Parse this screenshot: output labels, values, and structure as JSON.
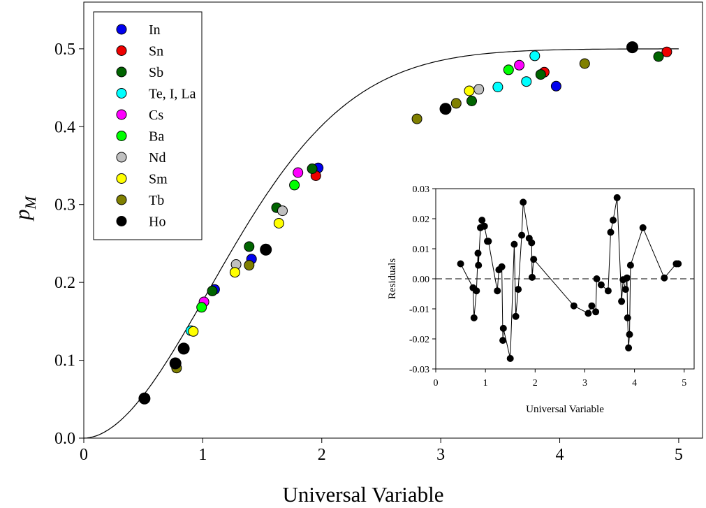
{
  "chart_data": [
    {
      "type": "scatter",
      "xlabel": "Universal Variable",
      "ylabel": "p",
      "ylabel_subscript": "M",
      "xlim": [
        0,
        5.2
      ],
      "ylim": [
        0,
        0.56
      ],
      "xticks": [
        0,
        1,
        2,
        3,
        4,
        5
      ],
      "yticks": [
        0.0,
        0.1,
        0.2,
        0.3,
        0.4,
        0.5
      ],
      "ytick_labels": [
        "0.0",
        "0.1",
        "0.2",
        "0.3",
        "0.4",
        "0.5"
      ],
      "legend_position": "top-left",
      "grid": false,
      "fit_curve": true,
      "series": [
        {
          "name": "In",
          "color": "#0000ee",
          "x": [
            1.1,
            1.41,
            1.97,
            3.97
          ],
          "y": [
            0.191,
            0.23,
            0.347,
            0.452
          ]
        },
        {
          "name": "Sn",
          "color": "#ee0000",
          "x": [
            1.95,
            3.87,
            4.9
          ],
          "y": [
            0.337,
            0.47,
            0.496
          ]
        },
        {
          "name": "Sb",
          "color": "#006400",
          "x": [
            1.08,
            1.39,
            1.62,
            1.92,
            3.26,
            3.84,
            4.83
          ],
          "y": [
            0.189,
            0.246,
            0.296,
            0.346,
            0.433,
            0.467,
            0.49
          ]
        },
        {
          "name": "Te, I, La",
          "color": "#00ffff",
          "x": [
            0.9,
            3.48,
            3.72,
            3.79
          ],
          "y": [
            0.138,
            0.451,
            0.458,
            0.491
          ]
        },
        {
          "name": "Cs",
          "color": "#ff00ff",
          "x": [
            1.01,
            1.8,
            3.66
          ],
          "y": [
            0.175,
            0.341,
            0.479
          ]
        },
        {
          "name": "Ba",
          "color": "#00ff00",
          "x": [
            0.99,
            1.77,
            3.57
          ],
          "y": [
            0.168,
            0.325,
            0.473
          ]
        },
        {
          "name": "Nd",
          "color": "#c0c0c0",
          "x": [
            1.28,
            1.67,
            3.32
          ],
          "y": [
            0.223,
            0.292,
            0.448
          ]
        },
        {
          "name": "Sm",
          "color": "#ffff00",
          "x": [
            0.92,
            1.27,
            1.64,
            3.24
          ],
          "y": [
            0.137,
            0.213,
            0.276,
            0.446
          ]
        },
        {
          "name": "Tb",
          "color": "#808000",
          "x": [
            0.78,
            1.39,
            2.8,
            3.13,
            4.21
          ],
          "y": [
            0.09,
            0.222,
            0.41,
            0.43,
            0.481
          ]
        },
        {
          "name": "Ho",
          "color": "#000000",
          "x": [
            0.51,
            0.77,
            0.84,
            1.53,
            3.04,
            4.61
          ],
          "y": [
            0.051,
            0.096,
            0.115,
            0.242,
            0.423,
            0.502
          ]
        }
      ]
    },
    {
      "type": "line",
      "xlabel": "Universal Variable",
      "ylabel": "Residuals",
      "xlim": [
        0,
        5.2
      ],
      "ylim": [
        -0.03,
        0.03
      ],
      "xticks": [
        0,
        1,
        2,
        3,
        4,
        5
      ],
      "yticks": [
        -0.03,
        -0.02,
        -0.01,
        0.0,
        0.01,
        0.02,
        0.03
      ],
      "ytick_labels": [
        "-0.03",
        "-0.02",
        "-0.01",
        "0.00",
        "0.01",
        "0.02",
        "0.03"
      ],
      "zero_line": "dashed",
      "series": [
        {
          "x": [
            0.5,
            0.75,
            0.77,
            0.82,
            0.85,
            0.86,
            0.9,
            0.93,
            0.98,
            1.04,
            1.06,
            1.24,
            1.27,
            1.33,
            1.35,
            1.36,
            1.5,
            1.58,
            1.61,
            1.66,
            1.73,
            1.76,
            1.88,
            1.93,
            1.94,
            1.97,
            2.78,
            3.07,
            3.14,
            3.22,
            3.24,
            3.33,
            3.47,
            3.52,
            3.57,
            3.65,
            3.74,
            3.77,
            3.82,
            3.85,
            3.86,
            3.88,
            3.9,
            3.92,
            4.17,
            4.6,
            4.84,
            4.88
          ],
          "y": [
            0.005,
            -0.003,
            -0.013,
            -0.004,
            0.0085,
            0.0045,
            0.017,
            0.0195,
            0.0175,
            0.0125,
            0.0125,
            -0.004,
            0.003,
            0.004,
            -0.0205,
            -0.0165,
            -0.0265,
            0.0115,
            -0.0125,
            -0.0035,
            0.0145,
            0.0255,
            0.0135,
            0.012,
            0.0005,
            0.0065,
            -0.009,
            -0.0115,
            -0.009,
            -0.011,
            0.0,
            -0.002,
            -0.004,
            0.0155,
            0.0195,
            0.027,
            -0.0075,
            -0.0003,
            -0.0035,
            0.0003,
            -0.013,
            -0.023,
            -0.0185,
            0.0045,
            0.017,
            0.0003,
            0.005,
            0.005
          ]
        }
      ]
    }
  ]
}
